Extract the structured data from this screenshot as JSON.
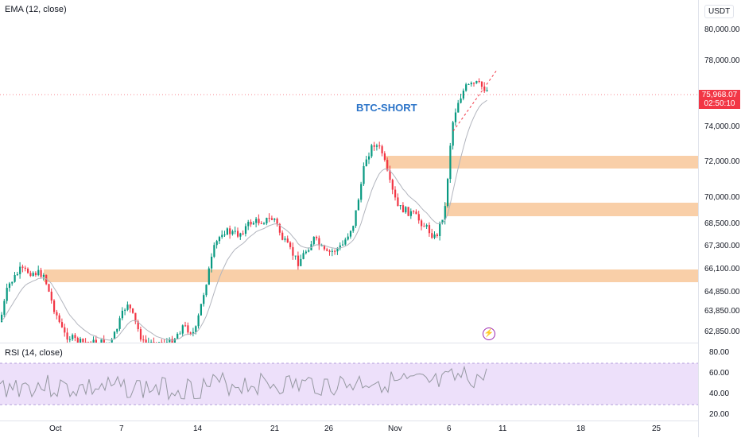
{
  "header": {
    "indicator": "EMA (12, close)",
    "currency": "USDT"
  },
  "annotation": {
    "title": "BTC-SHORT"
  },
  "price_axis": {
    "labels": [
      "80,000.00",
      "78,000.00",
      "74,000.00",
      "72,000.00",
      "70,000.00",
      "68,500.00",
      "67,300.00",
      "66,100.00",
      "64,850.00",
      "63,850.00",
      "62,850.00"
    ],
    "last_price": "75,968.07",
    "countdown": "02:50:10"
  },
  "rsi": {
    "label": "RSI (14, close)",
    "levels": [
      "80.00",
      "60.00",
      "40.00",
      "20.00"
    ]
  },
  "time_axis": {
    "labels": [
      "Oct",
      "7",
      "14",
      "21",
      "26",
      "Nov",
      "6",
      "11",
      "18",
      "25"
    ]
  },
  "colors": {
    "up": "#089981",
    "down": "#f23645",
    "zone": "#f9cfa8",
    "rsi_band": "#ede0fa",
    "rsi_line": "#9598a1",
    "ema": "#b2b5be",
    "accent": "#2a73c8"
  }
}
